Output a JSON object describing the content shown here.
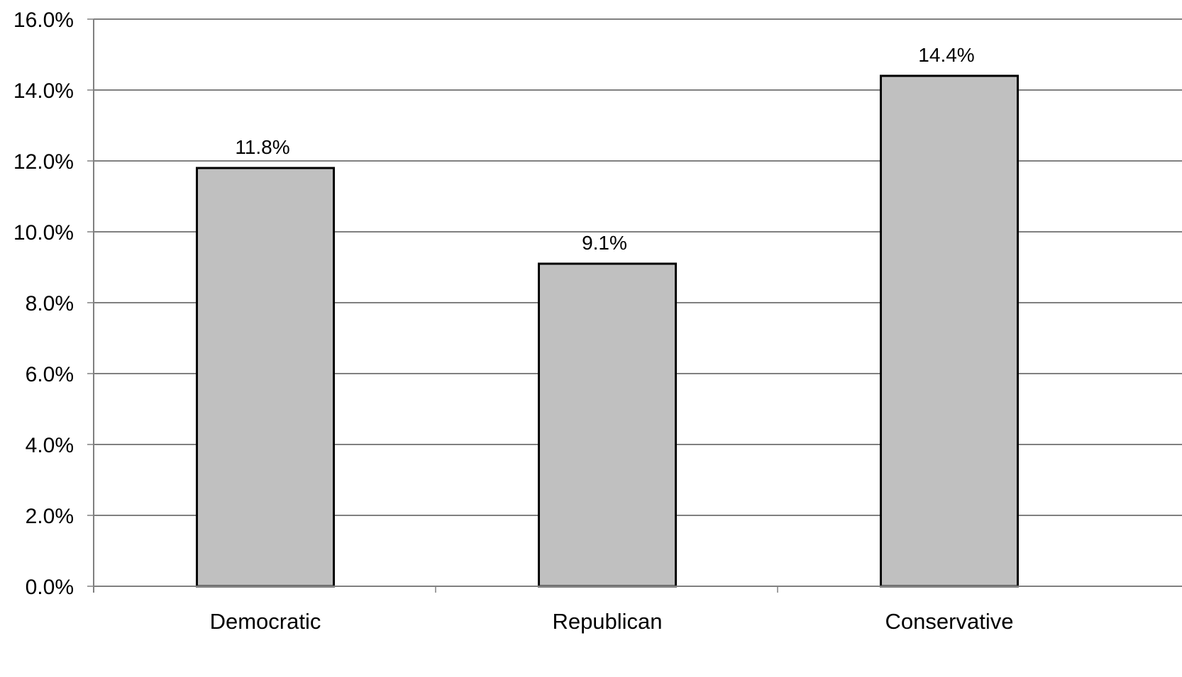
{
  "chart_data": {
    "type": "bar",
    "categories": [
      "Democratic",
      "Republican",
      "Conservative"
    ],
    "values": [
      11.8,
      9.1,
      14.4
    ],
    "data_labels": [
      "11.8%",
      "9.1%",
      "14.4%"
    ],
    "title": "",
    "xlabel": "",
    "ylabel": "",
    "ylim": [
      0,
      16
    ],
    "y_ticks": [
      0,
      2,
      4,
      6,
      8,
      10,
      12,
      14,
      16
    ],
    "y_tick_labels": [
      "0.0%",
      "2.0%",
      "4.0%",
      "6.0%",
      "8.0%",
      "10.0%",
      "12.0%",
      "14.0%",
      "16.0%"
    ],
    "grid": true,
    "legend": "none",
    "colors": {
      "bar_fill": "#c0c0c0",
      "bar_stroke": "#000000",
      "grid": "#000000",
      "axis": "#808080"
    }
  }
}
